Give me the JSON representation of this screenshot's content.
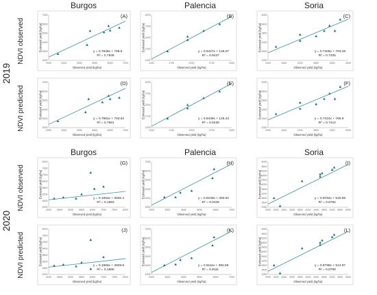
{
  "figure": {
    "sites": [
      "Burgos",
      "Palencia",
      "Soria"
    ],
    "years": [
      "2019",
      "2020"
    ],
    "row_labels": [
      "NDVI observed",
      "NDVI predicted",
      "NDVI observed",
      "NDVI predicted"
    ]
  },
  "chart_data": [
    {
      "panel": "(A)",
      "type": "scatter",
      "site": "Burgos",
      "year": "2019",
      "row": "NDVI observed",
      "xlabel": "Observed yield (kg/ha)",
      "ylabel": "Estimated yield (kg/ha)",
      "xlim": [
        2000,
        7000
      ],
      "ylim": [
        2000,
        7000
      ],
      "xticks": [
        "2000",
        "3000",
        "4000",
        "5000",
        "6000",
        "7000"
      ],
      "yticks": [
        "2000",
        "3000",
        "4000",
        "5000",
        "6000",
        "7000"
      ],
      "points": [
        [
          2600,
          2700
        ],
        [
          4500,
          3700
        ],
        [
          4700,
          5250
        ],
        [
          5600,
          5100
        ],
        [
          5900,
          5800
        ],
        [
          6000,
          5300
        ],
        [
          6600,
          5600
        ]
      ],
      "fit": {
        "slope": 0.7948,
        "intercept": 766.6
      },
      "equation": "y = 0.7948x + 766.6",
      "r2": "R² = 0.7948"
    },
    {
      "panel": "(B)",
      "type": "scatter",
      "site": "Palencia",
      "year": "2019",
      "row": "NDVI observed",
      "xlabel": "Observed yield (kg/ha)",
      "ylabel": "Estimated yield (kg/ha)",
      "xlim": [
        1200,
        3200
      ],
      "ylim": [
        1200,
        3200
      ],
      "xticks": [
        "1200",
        "1700",
        "2200",
        "2700",
        "3200"
      ],
      "yticks": [
        "1200",
        "1700",
        "2200",
        "2700",
        "3200"
      ],
      "points": [
        [
          1600,
          1600
        ],
        [
          2100,
          2100
        ],
        [
          2100,
          2250
        ],
        [
          2500,
          2500
        ],
        [
          2900,
          2800
        ]
      ],
      "fit": {
        "slope": 0.9427,
        "intercept": 126.07
      },
      "equation": "y = 0.9427x + 126.07",
      "r2": "R² = 0.9427"
    },
    {
      "panel": "(C)",
      "type": "scatter",
      "site": "Soria",
      "year": "2019",
      "row": "NDVI observed",
      "xlabel": "Observed yield (kg/ha)",
      "ylabel": "Estimated yield (kg/ha)",
      "xlim": [
        1000,
        4000
      ],
      "ylim": [
        1000,
        4000
      ],
      "xticks": [
        "1000",
        "1600",
        "2200",
        "2800",
        "3400",
        "4000"
      ],
      "yticks": [
        "1000",
        "1600",
        "2200",
        "2800",
        "3400",
        "4000"
      ],
      "points": [
        [
          1300,
          1900
        ],
        [
          2200,
          2300
        ],
        [
          2200,
          2700
        ],
        [
          2800,
          2600
        ],
        [
          3100,
          2950
        ],
        [
          3300,
          3300
        ],
        [
          3500,
          2950
        ],
        [
          3700,
          3700
        ]
      ],
      "fit": {
        "slope": 0.7405,
        "intercept": 763.29
      },
      "equation": "y = 0.7405x + 763.29",
      "r2": "R² = 0.7405"
    },
    {
      "panel": "(D)",
      "type": "scatter",
      "site": "Burgos",
      "year": "2019",
      "row": "NDVI predicted",
      "xlabel": "Observed yield (kg/ha)",
      "ylabel": "Estimated yield (kg/ha)",
      "xlim": [
        2000,
        7000
      ],
      "ylim": [
        2000,
        7000
      ],
      "xticks": [
        "2000",
        "3000",
        "4000",
        "5000",
        "6000",
        "7000"
      ],
      "yticks": [
        "2000",
        "3000",
        "4000",
        "5000",
        "6000",
        "7000"
      ],
      "points": [
        [
          2600,
          2700
        ],
        [
          4400,
          3700
        ],
        [
          4600,
          5150
        ],
        [
          5500,
          4800
        ],
        [
          5900,
          5500
        ],
        [
          6000,
          5150
        ],
        [
          6600,
          5300
        ]
      ],
      "fit": {
        "slope": 0.7961,
        "intercept": 763.64
      },
      "equation": "y = 0.7961x + 763.64",
      "r2": "R² = 0.7961"
    },
    {
      "panel": "(E)",
      "type": "scatter",
      "site": "Palencia",
      "year": "2019",
      "row": "NDVI predicted",
      "xlabel": "Observed yield (kg/ha)",
      "ylabel": "Estimated yield (kg/ha)",
      "xlim": [
        1200,
        3200
      ],
      "ylim": [
        1200,
        3200
      ],
      "xticks": [
        "1200",
        "1700",
        "2200",
        "2700",
        "3200"
      ],
      "yticks": [
        "1200",
        "1700",
        "2200",
        "2700",
        "3200"
      ],
      "points": [
        [
          1600,
          1600
        ],
        [
          2100,
          2050
        ],
        [
          2100,
          2200
        ],
        [
          2500,
          2500
        ],
        [
          2900,
          2800
        ]
      ],
      "fit": {
        "slope": 0.9439,
        "intercept": 125.44
      },
      "equation": "y = 0.9439x + 125.44",
      "r2": "R² = 0.9439"
    },
    {
      "panel": "(F)",
      "type": "scatter",
      "site": "Soria",
      "year": "2019",
      "row": "NDVI predicted",
      "xlabel": "Observed yield (kg/ha)",
      "ylabel": "Estimated yield (kg/ha)",
      "xlim": [
        1000,
        4000
      ],
      "ylim": [
        1000,
        4000
      ],
      "xticks": [
        "1000",
        "1600",
        "2200",
        "2800",
        "3400",
        "4000"
      ],
      "yticks": [
        "1000",
        "1600",
        "2200",
        "2800",
        "3400",
        "4000"
      ],
      "points": [
        [
          1300,
          1900
        ],
        [
          2200,
          2250
        ],
        [
          2200,
          2650
        ],
        [
          2800,
          2550
        ],
        [
          3100,
          2900
        ],
        [
          3300,
          3250
        ],
        [
          3500,
          2900
        ],
        [
          3700,
          3700
        ]
      ],
      "fit": {
        "slope": 0.7424,
        "intercept": 766.9
      },
      "equation": "y = 0.7424x + 766.9",
      "r2": "R² = 0.7414"
    },
    {
      "panel": "(G)",
      "type": "scatter",
      "site": "Burgos",
      "year": "2020",
      "row": "NDVI observed",
      "xlabel": "Observed yield (kg/ha)",
      "ylabel": "Estimated yield (kg/ha)",
      "xlim": [
        4000,
        8200
      ],
      "ylim": [
        4000,
        8200
      ],
      "xticks": [
        "4000",
        "4600",
        "5200",
        "5800",
        "6400",
        "7000",
        "7600",
        "8200"
      ],
      "yticks": [
        "4000",
        "4600",
        "5200",
        "5800",
        "6400",
        "7000",
        "7600",
        "8200"
      ],
      "points": [
        [
          4300,
          4800
        ],
        [
          4800,
          4900
        ],
        [
          5500,
          4800
        ],
        [
          5800,
          5200
        ],
        [
          6300,
          7200
        ],
        [
          6500,
          5700
        ],
        [
          7000,
          5900
        ]
      ],
      "fit": {
        "slope": 0.1853,
        "intercept": 3945.4
      },
      "equation": "y = 0.1853x + 3945.4",
      "r2": "R² = 0.1853"
    },
    {
      "panel": "(H)",
      "type": "scatter",
      "site": "Palencia",
      "year": "2020",
      "row": "NDVI observed",
      "xlabel": "Observed yield (kg/ha)",
      "ylabel": "Estimated yield (kg/ha)",
      "xlim": [
        2000,
        7000
      ],
      "ylim": [
        2000,
        7000
      ],
      "xticks": [
        "2000",
        "3000",
        "4000",
        "5000",
        "6000",
        "7000"
      ],
      "yticks": [
        "2000",
        "3000",
        "4000",
        "5000",
        "6000",
        "7000"
      ],
      "points": [
        [
          2800,
          3100
        ],
        [
          3500,
          3100
        ],
        [
          3800,
          3600
        ],
        [
          4500,
          3800
        ],
        [
          5800,
          5200
        ],
        [
          5900,
          6200
        ]
      ],
      "fit": {
        "slope": 0.9109,
        "intercept": 393.62
      },
      "equation": "y = 0.9109x + 393.62",
      "r2": "R² = 0.9109"
    },
    {
      "panel": "(I)",
      "type": "scatter",
      "site": "Soria",
      "year": "2020",
      "row": "NDVI observed",
      "xlabel": "Observed yield (kg/ha)",
      "ylabel": "Estimated yield (kg/ha)",
      "xlim": [
        2000,
        6000
      ],
      "ylim": [
        2000,
        6000
      ],
      "xticks": [
        "2000",
        "2400",
        "2800",
        "3200",
        "3600",
        "4000",
        "4400",
        "4800",
        "5200",
        "5600",
        "6000"
      ],
      "yticks": [
        "2000",
        "2400",
        "2800",
        "3200",
        "3600",
        "4000",
        "4400",
        "4800",
        "5200",
        "5600",
        "6000"
      ],
      "points": [
        [
          2300,
          2800
        ],
        [
          2600,
          2100
        ],
        [
          3700,
          4300
        ],
        [
          4600,
          4700
        ],
        [
          4600,
          4900
        ],
        [
          4700,
          5000
        ],
        [
          5200,
          5300
        ],
        [
          5300,
          5500
        ]
      ],
      "fit": {
        "slope": 0.8764,
        "intercept": 519.69
      },
      "equation": "y = 0.8764x + 519.69",
      "r2": "R² = 0.8784"
    },
    {
      "panel": "(J)",
      "type": "scatter",
      "site": "Burgos",
      "year": "2020",
      "row": "NDVI predicted",
      "xlabel": "Observed yield (kg/ha)",
      "ylabel": "Estimated yield (kg/ha)",
      "xlim": [
        4000,
        8200
      ],
      "ylim": [
        4000,
        8200
      ],
      "xticks": [
        "4000",
        "4600",
        "5200",
        "5800",
        "6400",
        "7000",
        "7600",
        "8200"
      ],
      "yticks": [
        "4000",
        "4600",
        "5200",
        "5800",
        "6400",
        "7000",
        "7600",
        "8200"
      ],
      "points": [
        [
          4300,
          4800
        ],
        [
          4800,
          4900
        ],
        [
          5500,
          4750
        ],
        [
          5800,
          5100
        ],
        [
          6300,
          7200
        ],
        [
          6300,
          4500
        ],
        [
          7000,
          5600
        ]
      ],
      "fit": {
        "slope": 0.1865,
        "intercept": 3929.8
      },
      "equation": "y = 0.1865x + 3929.8",
      "r2": "R² = 0.1865"
    },
    {
      "panel": "(K)",
      "type": "scatter",
      "site": "Palencia",
      "year": "2020",
      "row": "NDVI predicted",
      "xlabel": "Observed yield (kg/ha)",
      "ylabel": "Estimated yield (kg/ha)",
      "xlim": [
        2000,
        7000
      ],
      "ylim": [
        2000,
        7000
      ],
      "xticks": [
        "2000",
        "3000",
        "4000",
        "5000",
        "6000",
        "7000"
      ],
      "yticks": [
        "2000",
        "3000",
        "4000",
        "5000",
        "6000",
        "7000"
      ],
      "points": [
        [
          2800,
          3000
        ],
        [
          3500,
          3100
        ],
        [
          3800,
          3600
        ],
        [
          4500,
          3800
        ],
        [
          5800,
          5200
        ],
        [
          5900,
          6100
        ]
      ],
      "fit": {
        "slope": 0.9111,
        "intercept": 392.59
      },
      "equation": "y = 0.9111x + 392.59",
      "r2": "R² = 0.9111"
    },
    {
      "panel": "(L)",
      "type": "scatter",
      "site": "Soria",
      "year": "2020",
      "row": "NDVI predicted",
      "xlabel": "Observed yield (kg/ha)",
      "ylabel": "Estimated yield (kg/ha)",
      "xlim": [
        2000,
        6000
      ],
      "ylim": [
        2000,
        6000
      ],
      "xticks": [
        "2000",
        "2400",
        "2800",
        "3200",
        "3600",
        "4000",
        "4400",
        "4800",
        "5200",
        "5600",
        "6000"
      ],
      "yticks": [
        "2000",
        "2400",
        "2800",
        "3200",
        "3600",
        "4000",
        "4400",
        "4800",
        "5200",
        "5600",
        "6000"
      ],
      "points": [
        [
          2300,
          2800
        ],
        [
          2600,
          2100
        ],
        [
          3700,
          4300
        ],
        [
          4600,
          4600
        ],
        [
          4600,
          4800
        ],
        [
          4700,
          5000
        ],
        [
          5200,
          5300
        ],
        [
          5300,
          5500
        ]
      ],
      "fit": {
        "slope": 0.8798,
        "intercept": 513.97
      },
      "equation": "y = 0.8798x + 513.97",
      "r2": "R² = 0.8798"
    }
  ]
}
